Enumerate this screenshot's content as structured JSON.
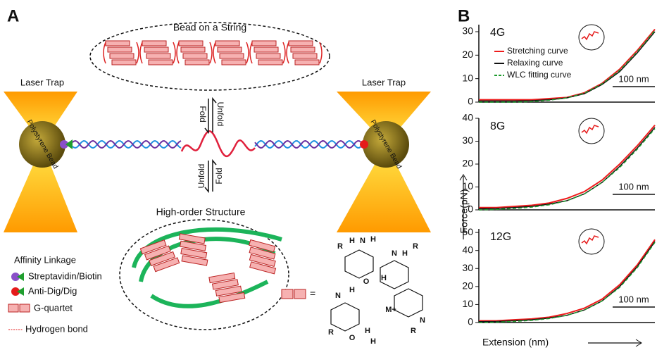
{
  "panel_a": {
    "label": "A",
    "bead_on_string": "Bead on a String",
    "laser_trap_left": "Laser Trap",
    "laser_trap_right": "Laser Trap",
    "bead_left": "Polystyrene Bead",
    "bead_right": "Polystyrene Bead",
    "fold_top": "Fold",
    "unfold_top": "Unfold",
    "fold_bottom": "Fold",
    "unfold_bottom": "Unfold",
    "high_order": "High-order Structure",
    "legend": {
      "title": "Affinity Linkage",
      "items": [
        "Streptavidin/Biotin",
        "Anti-Dig/Dig",
        "G-quartet",
        "Hydrogen bond"
      ]
    },
    "equals": "=",
    "atoms": [
      "R",
      "H",
      "N",
      "H",
      "R",
      "O",
      "H",
      "N",
      "H",
      "M+",
      "H",
      "N",
      "O",
      "H",
      "R",
      "N",
      "H",
      "R"
    ]
  },
  "panel_b": {
    "label": "B",
    "ylabel": "Force(pN)",
    "xlabel": "Extension (nm)"
  },
  "chart_data": [
    {
      "type": "line",
      "title": "4G",
      "scale_bar": "100 nm",
      "x": [
        0,
        1,
        2,
        3,
        4,
        5,
        6,
        7,
        8,
        9,
        10
      ],
      "xlim": [
        0,
        10
      ],
      "ylim": [
        0,
        33
      ],
      "yticks": [
        0,
        10,
        20,
        30
      ],
      "series": [
        {
          "name": "Stretching curve",
          "color": "#ee1c1c",
          "values": [
            1,
            1,
            1,
            1,
            1.5,
            2,
            4,
            8,
            14,
            22,
            31
          ]
        },
        {
          "name": "Relaxing curve",
          "color": "#111111",
          "values": [
            0.5,
            0.5,
            0.5,
            0.6,
            1,
            1.8,
            3.6,
            7.5,
            13,
            21,
            30
          ]
        },
        {
          "name": "WLC fitting curve",
          "color": "#1e9a2e",
          "values": [
            0,
            0,
            0,
            0.2,
            0.8,
            1.8,
            3.8,
            7.8,
            13.5,
            21.5,
            30.5
          ]
        }
      ]
    },
    {
      "type": "line",
      "title": "8G",
      "scale_bar": "100 nm",
      "x": [
        0,
        1,
        2,
        3,
        4,
        5,
        6,
        7,
        8,
        9,
        10
      ],
      "xlim": [
        0,
        10
      ],
      "ylim": [
        0,
        40
      ],
      "yticks": [
        0,
        10,
        20,
        30,
        40
      ],
      "series": [
        {
          "color": "#ee1c1c",
          "values": [
            1,
            1,
            1.5,
            2,
            3,
            5,
            8,
            13,
            20,
            28,
            37
          ]
        },
        {
          "color": "#111111",
          "values": [
            0.5,
            0.6,
            1,
            1.5,
            2.5,
            4,
            7,
            12,
            19,
            27,
            36
          ]
        },
        {
          "color": "#1e9a2e",
          "values": [
            0,
            0.2,
            0.6,
            1.2,
            2.2,
            4,
            7,
            12,
            18.5,
            26.5,
            35.5
          ]
        }
      ]
    },
    {
      "type": "line",
      "title": "12G",
      "scale_bar": "100 nm",
      "x": [
        0,
        1,
        2,
        3,
        4,
        5,
        6,
        7,
        8,
        9,
        10
      ],
      "xlim": [
        0,
        10
      ],
      "ylim": [
        0,
        52
      ],
      "yticks": [
        0,
        10,
        20,
        30,
        40,
        50
      ],
      "series": [
        {
          "color": "#ee1c1c",
          "values": [
            1,
            1,
            1.5,
            2,
            3,
            5,
            8,
            13,
            21,
            32,
            46
          ]
        },
        {
          "color": "#111111",
          "values": [
            0.5,
            0.6,
            1,
            1.5,
            2.5,
            4,
            7,
            12,
            20,
            31,
            45
          ]
        },
        {
          "color": "#1e9a2e",
          "values": [
            0,
            0.2,
            0.6,
            1.2,
            2.2,
            4,
            7,
            12,
            19.5,
            30.5,
            44.5
          ]
        }
      ]
    }
  ]
}
